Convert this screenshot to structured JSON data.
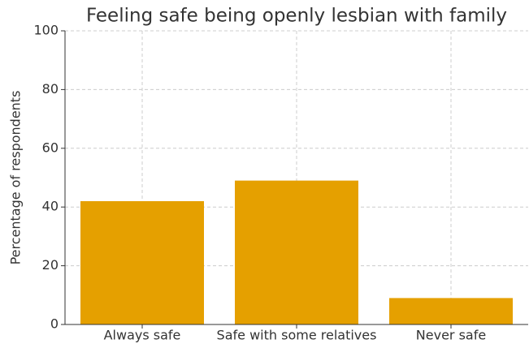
{
  "chart_data": {
    "type": "bar",
    "title": "Feeling safe being openly lesbian with family",
    "ylabel": "Percentage of respondents",
    "categories": [
      "Always safe",
      "Safe with some relatives",
      "Never safe"
    ],
    "values": [
      42,
      49,
      9
    ],
    "color": "#e5a000",
    "ylim": [
      0,
      100
    ],
    "yticks": [
      0,
      20,
      40,
      60,
      80,
      100
    ],
    "grid": true
  }
}
